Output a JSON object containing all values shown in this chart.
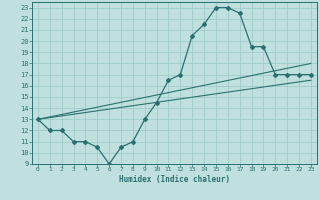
{
  "title": "",
  "xlabel": "Humidex (Indice chaleur)",
  "background_color": "#c0e0e0",
  "grid_color": "#a0cccc",
  "line_color": "#2a7070",
  "xlim": [
    -0.5,
    23.5
  ],
  "ylim": [
    9,
    23.5
  ],
  "yticks": [
    9,
    10,
    11,
    12,
    13,
    14,
    15,
    16,
    17,
    18,
    19,
    20,
    21,
    22,
    23
  ],
  "xticks": [
    0,
    1,
    2,
    3,
    4,
    5,
    6,
    7,
    8,
    9,
    10,
    11,
    12,
    13,
    14,
    15,
    16,
    17,
    18,
    19,
    20,
    21,
    22,
    23
  ],
  "curve1_x": [
    0,
    1,
    2,
    3,
    4,
    5,
    6,
    7,
    8,
    9,
    10,
    11,
    12,
    13,
    14,
    15,
    16,
    17,
    18,
    19,
    20,
    21,
    22,
    23
  ],
  "curve1_y": [
    13,
    12,
    12,
    11,
    11,
    10.5,
    9,
    10.5,
    11,
    13,
    14.5,
    16.5,
    17,
    20.5,
    21.5,
    23,
    23,
    22.5,
    19.5,
    19.5,
    17,
    17,
    17,
    17
  ],
  "curve2_x": [
    0,
    23
  ],
  "curve2_y": [
    13,
    18.0
  ],
  "curve3_x": [
    0,
    23
  ],
  "curve3_y": [
    13,
    16.5
  ]
}
